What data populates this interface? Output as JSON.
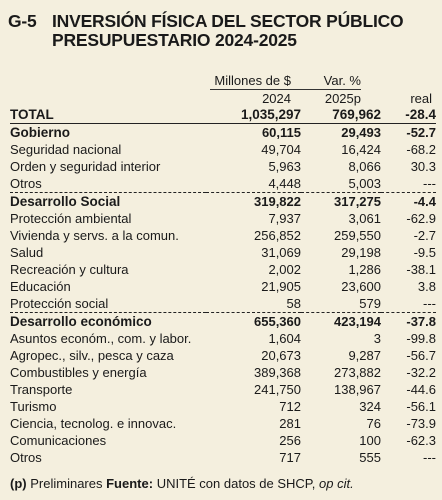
{
  "title": {
    "code": "G-5",
    "line1": "INVERSIÓN FÍSICA DEL SECTOR PÚBLICO",
    "line2": "PRESUPUESTARIO 2024-2025"
  },
  "headers": {
    "millones": "Millones de $",
    "var": "Var. %",
    "y2024": "2024",
    "y2025": "2025p",
    "real": "real"
  },
  "total": {
    "label": "TOTAL",
    "v2024": "1,035,297",
    "v2025": "769,962",
    "real": "-28.4"
  },
  "sections": [
    {
      "name": "Gobierno",
      "v2024": "60,115",
      "v2025": "29,493",
      "real": "-52.7",
      "rows": [
        {
          "label": "Seguridad nacional",
          "v2024": "49,704",
          "v2025": "16,424",
          "real": "-68.2"
        },
        {
          "label": "Orden y seguridad interior",
          "v2024": "5,963",
          "v2025": "8,066",
          "real": "30.3"
        },
        {
          "label": "Otros",
          "v2024": "4,448",
          "v2025": "5,003",
          "real": "---"
        }
      ]
    },
    {
      "name": "Desarrollo Social",
      "v2024": "319,822",
      "v2025": "317,275",
      "real": "-4.4",
      "rows": [
        {
          "label": "Protección ambiental",
          "v2024": "7,937",
          "v2025": "3,061",
          "real": "-62.9"
        },
        {
          "label": "Vivienda y servs. a la comun.",
          "v2024": "256,852",
          "v2025": "259,550",
          "real": "-2.7"
        },
        {
          "label": "Salud",
          "v2024": "31,069",
          "v2025": "29,198",
          "real": "-9.5"
        },
        {
          "label": "Recreación y cultura",
          "v2024": "2,002",
          "v2025": "1,286",
          "real": "-38.1"
        },
        {
          "label": "Educación",
          "v2024": "21,905",
          "v2025": "23,600",
          "real": "3.8"
        },
        {
          "label": "Protección social",
          "v2024": "58",
          "v2025": "579",
          "real": "---"
        }
      ]
    },
    {
      "name": "Desarrollo económico",
      "v2024": "655,360",
      "v2025": "423,194",
      "real": "-37.8",
      "rows": [
        {
          "label": "Asuntos económ., com. y labor.",
          "v2024": "1,604",
          "v2025": "3",
          "real": "-99.8"
        },
        {
          "label": "Agropec., silv., pesca y caza",
          "v2024": "20,673",
          "v2025": "9,287",
          "real": "-56.7"
        },
        {
          "label": "Combustibles y energía",
          "v2024": "389,368",
          "v2025": "273,882",
          "real": "-32.2"
        },
        {
          "label": "Transporte",
          "v2024": "241,750",
          "v2025": "138,967",
          "real": "-44.6"
        },
        {
          "label": "Turismo",
          "v2024": "712",
          "v2025": "324",
          "real": "-56.1"
        },
        {
          "label": "Ciencia, tecnolog. e innovac.",
          "v2024": "281",
          "v2025": "76",
          "real": "-73.9"
        },
        {
          "label": "Comunicaciones",
          "v2024": "256",
          "v2025": "100",
          "real": "-62.3"
        },
        {
          "label": "Otros",
          "v2024": "717",
          "v2025": "555",
          "real": "---"
        }
      ]
    }
  ],
  "footer": {
    "p": "(p)",
    "prelim": "Preliminares",
    "fuente": "Fuente:",
    "source": "UNITÉ con datos de SHCP,",
    "opcit": "op cit."
  }
}
